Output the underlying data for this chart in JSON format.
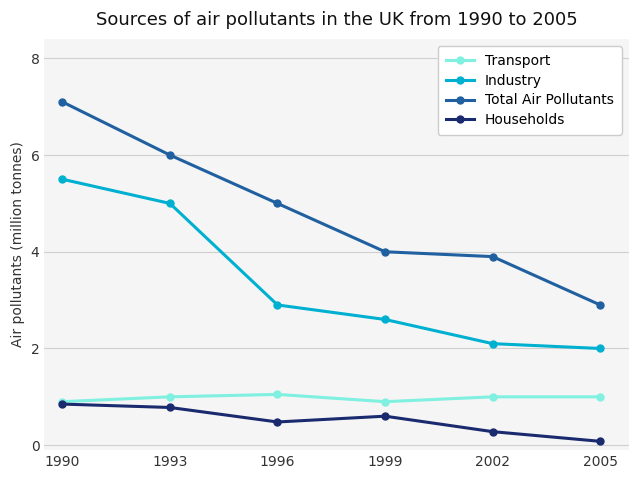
{
  "title": "Sources of air pollutants in the UK from 1990 to 2005",
  "ylabel": "Air pollutants (million tonnes)",
  "years": [
    1990,
    1993,
    1996,
    1999,
    2002,
    2005
  ],
  "series": [
    {
      "label": "Transport",
      "color": "#80f0e0",
      "values": [
        0.9,
        1.0,
        1.05,
        0.9,
        1.0,
        1.0
      ]
    },
    {
      "label": "Industry",
      "color": "#00b0d0",
      "values": [
        5.5,
        5.0,
        2.9,
        2.6,
        2.1,
        2.0
      ]
    },
    {
      "label": "Total Air Pollutants",
      "color": "#2060a0",
      "values": [
        7.1,
        6.0,
        5.0,
        4.0,
        3.9,
        2.9
      ]
    },
    {
      "label": "Households",
      "color": "#1a2a6e",
      "values": [
        0.85,
        0.78,
        0.48,
        0.6,
        0.28,
        0.08
      ]
    }
  ],
  "ylim": [
    -0.1,
    8.4
  ],
  "yticks": [
    0,
    2,
    4,
    6,
    8
  ],
  "xlim": [
    1989.5,
    2005.8
  ],
  "background_color": "#ffffff",
  "plot_bg_color": "#f5f5f5",
  "grid_color": "#d0d0d0",
  "title_fontsize": 13,
  "label_fontsize": 10,
  "tick_fontsize": 10,
  "legend_fontsize": 10,
  "linewidth": 2.2,
  "markersize": 5
}
